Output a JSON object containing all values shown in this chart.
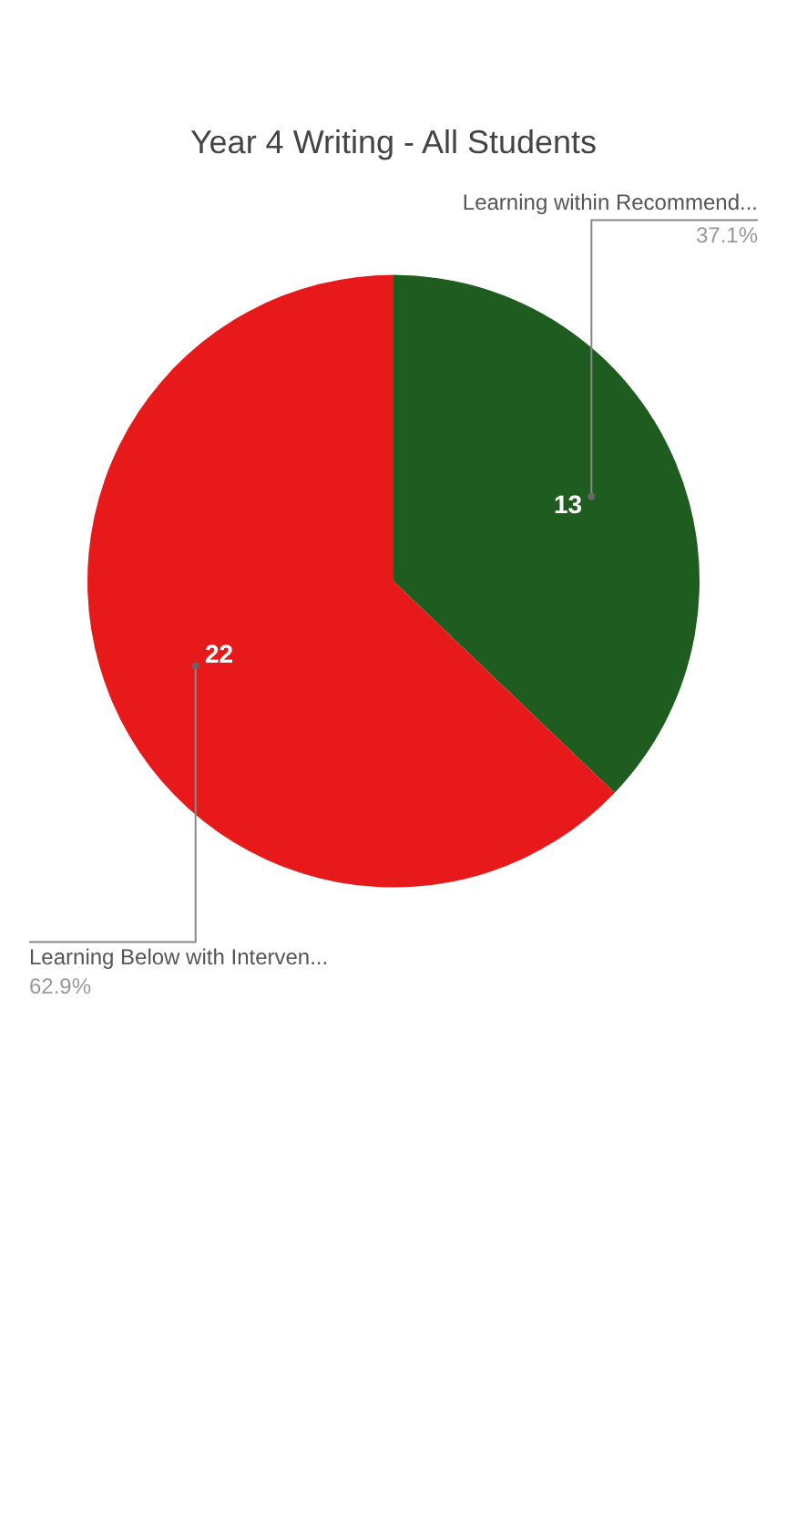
{
  "chart_data": {
    "type": "pie",
    "title": "Year 4 Writing - All Students",
    "categories": [
      "Learning within Recommend...",
      "Learning Below with Interven..."
    ],
    "values": [
      13,
      22
    ],
    "colors": [
      "#1f5c1f",
      "#e8191a"
    ],
    "data_labels": true,
    "annotations": [
      "37.1%",
      "62.9%"
    ],
    "legend": false
  }
}
